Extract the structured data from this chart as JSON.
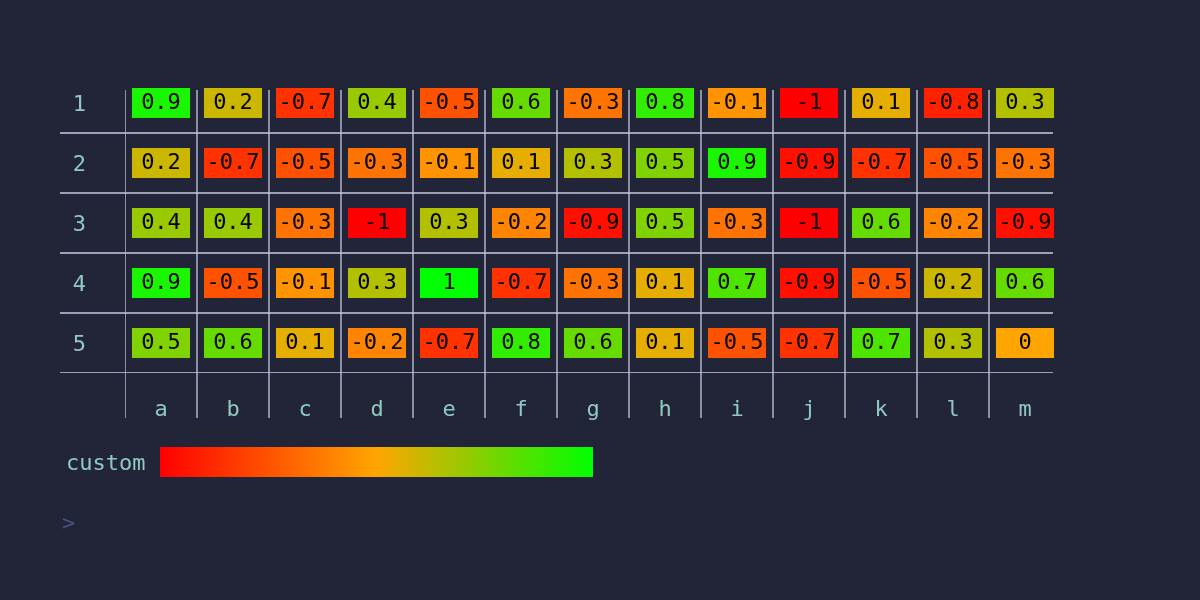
{
  "chart_data": {
    "type": "heatmap",
    "categories": [
      "a",
      "b",
      "c",
      "d",
      "e",
      "f",
      "g",
      "h",
      "i",
      "j",
      "k",
      "l",
      "m"
    ],
    "y_categories": [
      "1",
      "2",
      "3",
      "4",
      "5"
    ],
    "cells": [
      [
        0.9,
        0.2,
        -0.7,
        0.4,
        -0.5,
        0.6,
        -0.3,
        0.8,
        -0.1,
        -1,
        0.1,
        -0.8,
        0.3
      ],
      [
        0.2,
        -0.7,
        -0.5,
        -0.3,
        -0.1,
        0.1,
        0.3,
        0.5,
        0.9,
        -0.9,
        -0.7,
        -0.5,
        -0.3
      ],
      [
        0.4,
        0.4,
        -0.3,
        -1,
        0.3,
        -0.2,
        -0.9,
        0.5,
        -0.3,
        -1,
        0.6,
        -0.2,
        -0.9
      ],
      [
        0.9,
        -0.5,
        -0.1,
        0.3,
        1,
        -0.7,
        -0.3,
        0.1,
        0.7,
        -0.9,
        -0.5,
        0.2,
        0.6
      ],
      [
        0.5,
        0.6,
        0.1,
        -0.2,
        -0.7,
        0.8,
        0.6,
        0.1,
        -0.5,
        -0.7,
        0.7,
        0.3,
        0
      ]
    ],
    "colors": [
      "#ff0000",
      "#ffa500",
      "#00ff00"
    ],
    "clabel": "custom",
    "data_labels": true,
    "grid": true,
    "annotations": [
      ">"
    ]
  }
}
